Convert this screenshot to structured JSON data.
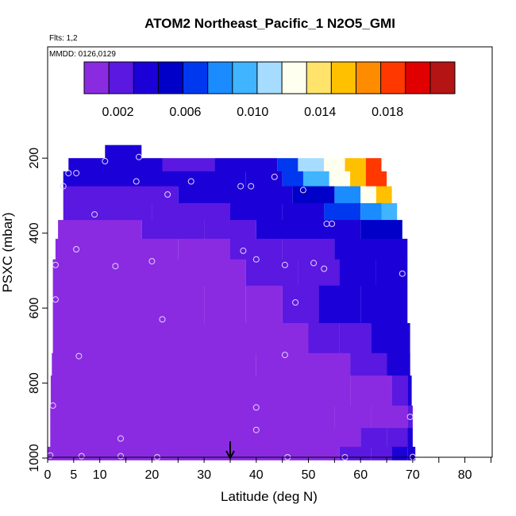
{
  "chart_data": {
    "type": "heatmap",
    "title": "ATOM2 Northeast_Pacific_1 N2O5_GMI",
    "flights_label": "Flts: 1,2",
    "dates_label": "MMDD: 0126,0129",
    "xlabel": "Latitude (deg N)",
    "ylabel": "PSXC (mbar)",
    "xlim": [
      0,
      85
    ],
    "ylim": [
      1000,
      100
    ],
    "y_reversed": true,
    "x_ticks": [
      "0",
      "5",
      "10",
      "20",
      "30",
      "40",
      "50",
      "60",
      "70",
      "80"
    ],
    "x_tick_values": [
      0,
      5,
      10,
      20,
      30,
      40,
      50,
      60,
      70,
      80
    ],
    "y_ticks": [
      "200",
      "400",
      "600",
      "800",
      "1000"
    ],
    "y_tick_values": [
      200,
      400,
      600,
      800,
      1000
    ],
    "colorbar": {
      "range": [
        0,
        0.022
      ],
      "tick_labels": [
        "0.002",
        "0.006",
        "0.010",
        "0.014",
        "0.018"
      ],
      "tick_values": [
        0.002,
        0.006,
        0.01,
        0.014,
        0.018
      ],
      "colors": [
        "#8a2be2",
        "#5a18e0",
        "#1c00d8",
        "#0000c8",
        "#0038f0",
        "#1a8cff",
        "#40b4ff",
        "#a6dcff",
        "#fffff0",
        "#ffe36a",
        "#ffc000",
        "#ff8c00",
        "#ff3800",
        "#e00000",
        "#b51414"
      ]
    },
    "grid": false,
    "arrow_latitude": 35,
    "rows": [
      {
        "p": [
          165,
          200
        ],
        "x0": 11,
        "x1": 18,
        "c": [
          [
            11,
            0.003
          ]
        ]
      },
      {
        "p": [
          200,
          235
        ],
        "x0": 4,
        "x1": 64,
        "c": [
          [
            4,
            0.003
          ],
          [
            22,
            0.002
          ],
          [
            32,
            0.003
          ],
          [
            44,
            0.007
          ],
          [
            48,
            0.011
          ],
          [
            53,
            0.013
          ],
          [
            57,
            0.016
          ],
          [
            61,
            0.019
          ]
        ]
      },
      {
        "p": [
          235,
          275
        ],
        "x0": 3,
        "x1": 65,
        "c": [
          [
            3,
            0.003
          ],
          [
            22,
            0.003
          ],
          [
            38,
            0.004
          ],
          [
            45,
            0.006
          ],
          [
            49,
            0.009
          ],
          [
            54,
            0.012
          ],
          [
            58,
            0.015
          ],
          [
            61,
            0.018
          ]
        ]
      },
      {
        "p": [
          275,
          320
        ],
        "x0": 3,
        "x1": 66,
        "c": [
          [
            3,
            0.002
          ],
          [
            25,
            0.003
          ],
          [
            35,
            0.003
          ],
          [
            47,
            0.005
          ],
          [
            55,
            0.008
          ],
          [
            60,
            0.012
          ],
          [
            63,
            0.015
          ]
        ]
      },
      {
        "p": [
          320,
          365
        ],
        "x0": 3,
        "x1": 67,
        "c": [
          [
            3,
            0.0018
          ],
          [
            20,
            0.002
          ],
          [
            35,
            0.003
          ],
          [
            45,
            0.004
          ],
          [
            53,
            0.006
          ],
          [
            60,
            0.008
          ],
          [
            64,
            0.009
          ]
        ]
      },
      {
        "p": [
          365,
          415
        ],
        "x0": 2,
        "x1": 68,
        "c": [
          [
            2,
            0.001
          ],
          [
            18,
            0.0015
          ],
          [
            30,
            0.002
          ],
          [
            40,
            0.003
          ],
          [
            50,
            0.004
          ],
          [
            60,
            0.005
          ]
        ]
      },
      {
        "p": [
          415,
          470
        ],
        "x0": 1.5,
        "x1": 69,
        "c": [
          [
            1.5,
            0.0008
          ],
          [
            25,
            0.001
          ],
          [
            35,
            0.0015
          ],
          [
            45,
            0.0025
          ],
          [
            55,
            0.0035
          ],
          [
            63,
            0.004
          ]
        ]
      },
      {
        "p": [
          470,
          540
        ],
        "x0": 1,
        "x1": 69,
        "c": [
          [
            1,
            0.0008
          ],
          [
            28,
            0.001
          ],
          [
            38,
            0.0015
          ],
          [
            48,
            0.0025
          ],
          [
            56,
            0.0032
          ],
          [
            63,
            0.0035
          ]
        ]
      },
      {
        "p": [
          540,
          640
        ],
        "x0": 1,
        "x1": 69,
        "c": [
          [
            1,
            0.0008
          ],
          [
            30,
            0.0009
          ],
          [
            38,
            0.0013
          ],
          [
            45,
            0.0022
          ],
          [
            52,
            0.003
          ],
          [
            60,
            0.0034
          ]
        ]
      },
      {
        "p": [
          640,
          720
        ],
        "x0": 1,
        "x1": 69.5,
        "c": [
          [
            1,
            0.0008
          ],
          [
            35,
            0.0009
          ],
          [
            42,
            0.0012
          ],
          [
            50,
            0.002
          ],
          [
            56,
            0.0028
          ],
          [
            62,
            0.0034
          ]
        ]
      },
      {
        "p": [
          720,
          780
        ],
        "x0": 0.8,
        "x1": 69.5,
        "c": [
          [
            0.8,
            0.0008
          ],
          [
            40,
            0.0009
          ],
          [
            50,
            0.0013
          ],
          [
            58,
            0.0022
          ],
          [
            65,
            0.003
          ]
        ]
      },
      {
        "p": [
          780,
          860
        ],
        "x0": 0.6,
        "x1": 69.8,
        "c": [
          [
            0.6,
            0.0008
          ],
          [
            50,
            0.0009
          ],
          [
            58,
            0.0013
          ],
          [
            66,
            0.0025
          ],
          [
            69,
            0.004
          ]
        ]
      },
      {
        "p": [
          860,
          920
        ],
        "x0": 0.5,
        "x1": 70,
        "c": [
          [
            0.5,
            0.0008
          ],
          [
            55,
            0.0009
          ],
          [
            62,
            0.001
          ],
          [
            69,
            0.0015
          ]
        ]
      },
      {
        "p": [
          920,
          970
        ],
        "x0": 0.5,
        "x1": 70,
        "c": [
          [
            0.5,
            0.0008
          ],
          [
            50,
            0.0009
          ],
          [
            60,
            0.0015
          ],
          [
            65,
            0.0025
          ],
          [
            69,
            0.004
          ]
        ]
      },
      {
        "p": [
          970,
          1005
        ],
        "x0": 0,
        "x1": 70.5,
        "c": [
          [
            0,
            0.0008
          ],
          [
            50,
            0.0009
          ],
          [
            56,
            0.0015
          ],
          [
            62,
            0.0025
          ],
          [
            66,
            0.0035
          ],
          [
            69,
            0.004
          ]
        ]
      }
    ],
    "points": [
      [
        11,
        208
      ],
      [
        17.5,
        197
      ],
      [
        4,
        240
      ],
      [
        5.5,
        240
      ],
      [
        3,
        275
      ],
      [
        17,
        262
      ],
      [
        23,
        297
      ],
      [
        27.5,
        262
      ],
      [
        37,
        275
      ],
      [
        39,
        275
      ],
      [
        43.5,
        250
      ],
      [
        49,
        285
      ],
      [
        9,
        350
      ],
      [
        53.5,
        375
      ],
      [
        54.5,
        375
      ],
      [
        37.5,
        447
      ],
      [
        5.5,
        443
      ],
      [
        1.5,
        485
      ],
      [
        13,
        488
      ],
      [
        20,
        475
      ],
      [
        40,
        470
      ],
      [
        45.5,
        485
      ],
      [
        51,
        480
      ],
      [
        53,
        495
      ],
      [
        68,
        508
      ],
      [
        1.5,
        577
      ],
      [
        47.5,
        585
      ],
      [
        22,
        630
      ],
      [
        6,
        728
      ],
      [
        45.5,
        725
      ],
      [
        1,
        860
      ],
      [
        40,
        865
      ],
      [
        69.5,
        890
      ],
      [
        40,
        925
      ],
      [
        14,
        948
      ],
      [
        0.5,
        993
      ],
      [
        6.5,
        995
      ],
      [
        14,
        995
      ],
      [
        21,
        1001
      ],
      [
        46,
        1015
      ],
      [
        57,
        1007
      ],
      [
        70,
        997
      ]
    ]
  }
}
